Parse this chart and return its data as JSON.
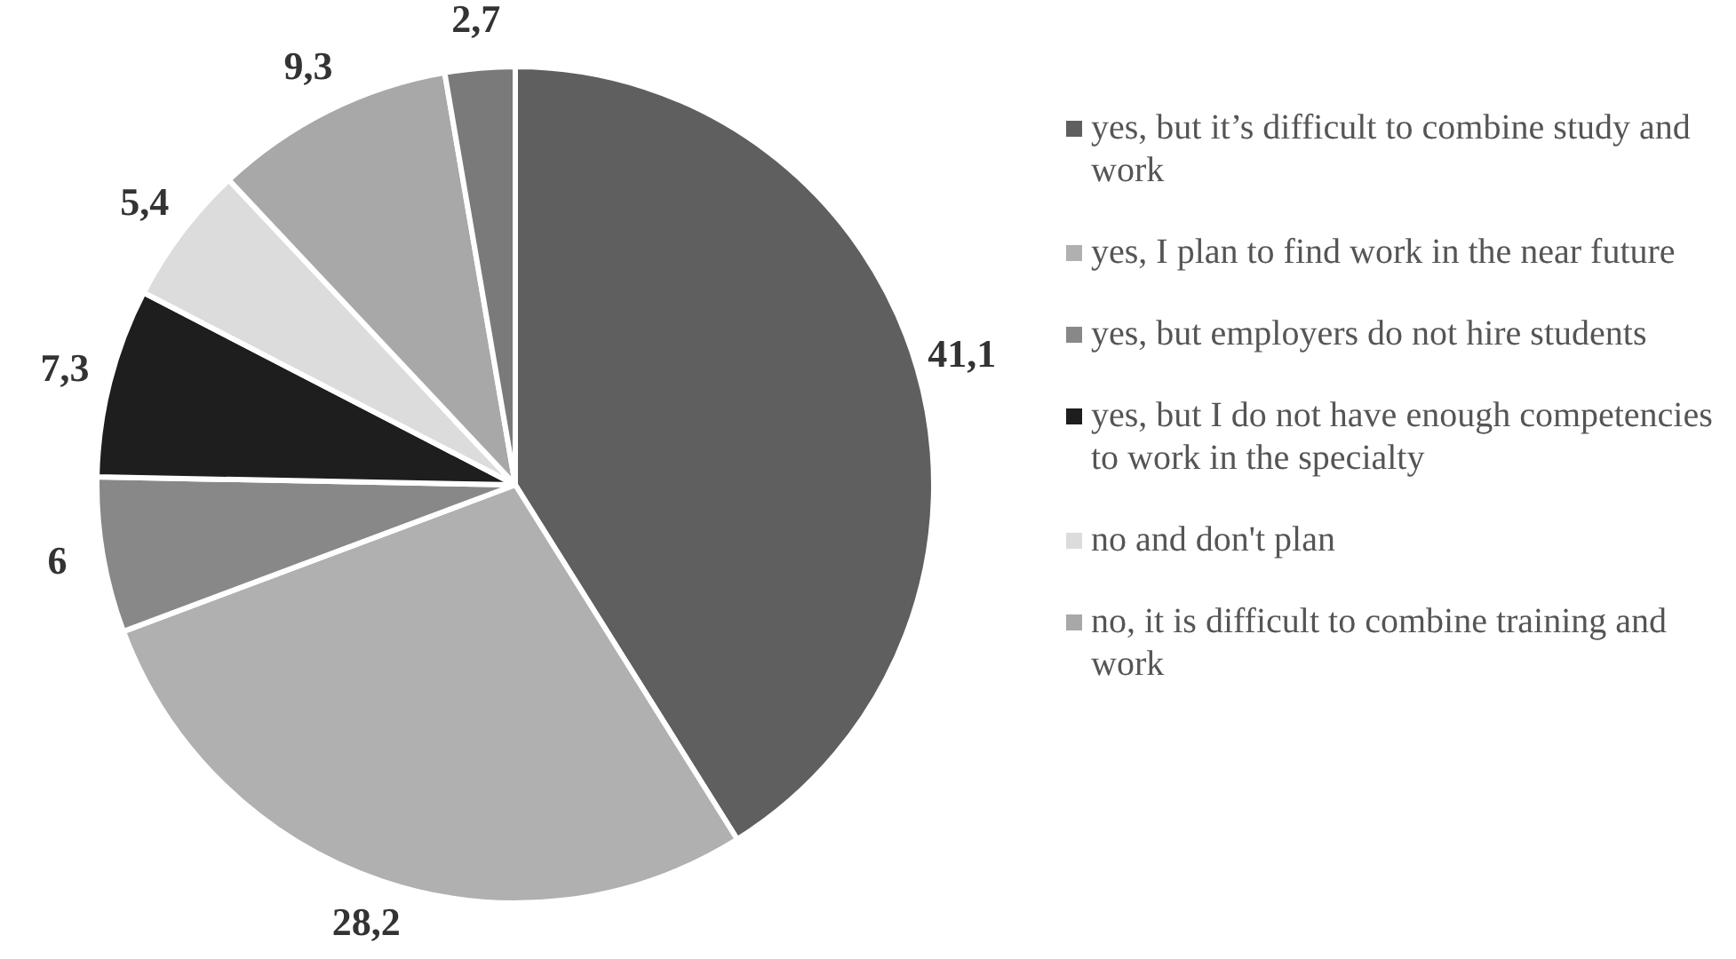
{
  "chart_data": {
    "type": "pie",
    "categories": [
      "yes, but it’s difficult to combine study and work",
      "yes, I plan to find work in the near future",
      "yes, but employers do not hire students",
      "yes, but I do not have enough competencies to work in the specialty",
      "no and don't plan",
      "no, it is difficult to combine training and work",
      null
    ],
    "values": [
      41.1,
      28.2,
      6,
      7.3,
      5.4,
      9.3,
      2.7
    ],
    "value_labels": [
      "41,1",
      "28,2",
      "6",
      "7,3",
      "5,4",
      "9,3",
      "2,7"
    ],
    "colors": [
      "#5f5f5f",
      "#b0b0b0",
      "#888888",
      "#1e1e1e",
      "#dcdcdc",
      "#a8a8a8",
      "#7a7a7a"
    ],
    "legend": "right"
  }
}
